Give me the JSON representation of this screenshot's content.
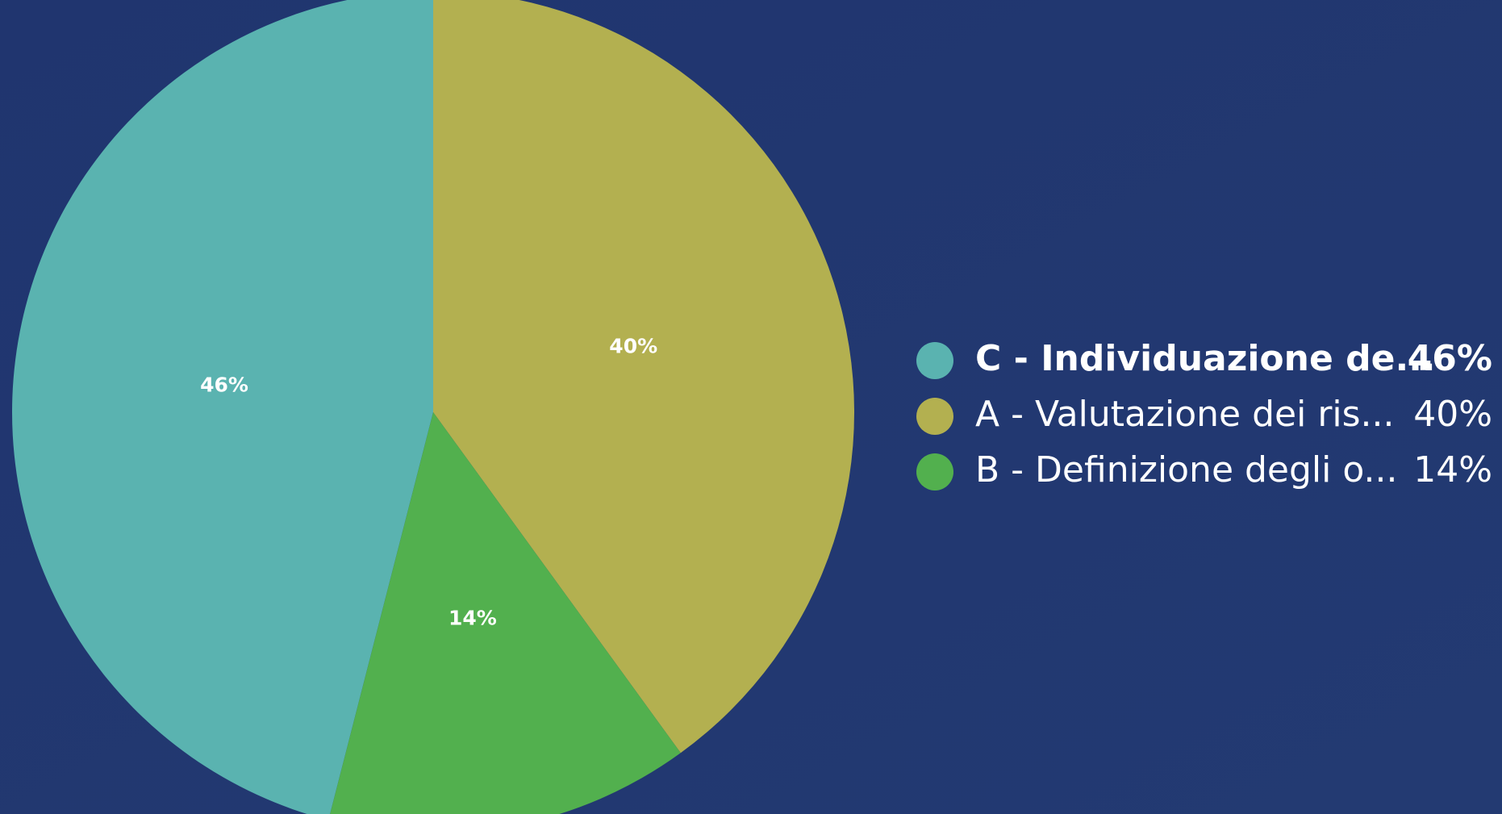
{
  "chart_data": {
    "type": "pie",
    "categories": [
      "C - Individuazione de...",
      "A - Valutazione dei ris...",
      "B - Definizione degli o..."
    ],
    "values": [
      46,
      40,
      14
    ],
    "value_labels": [
      "46%",
      "40%",
      "14%"
    ],
    "colors": [
      "#5ab3b0",
      "#b3b050",
      "#52b04e"
    ],
    "legend": "right"
  }
}
